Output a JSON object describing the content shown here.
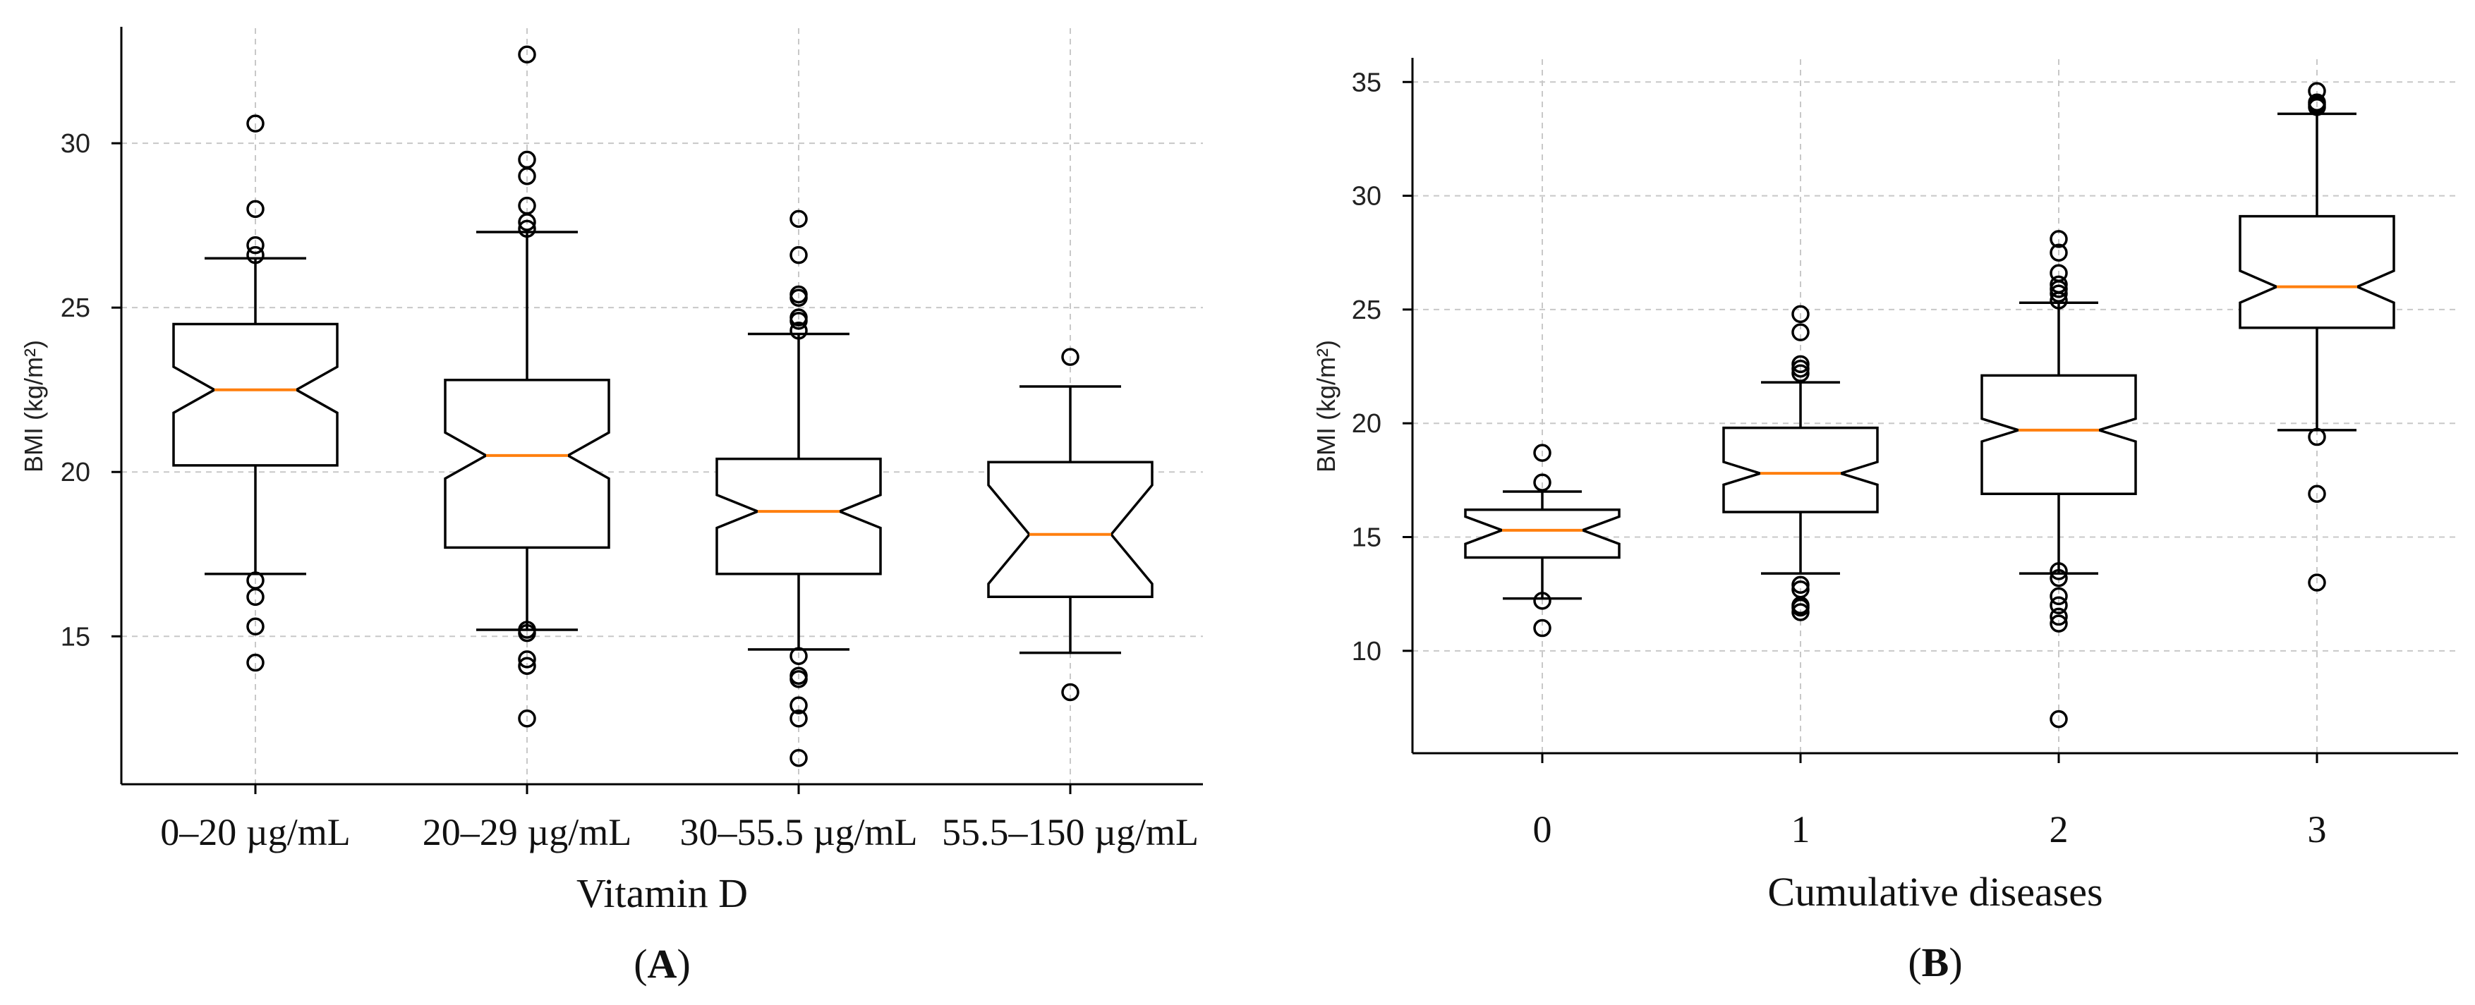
{
  "chart_data": [
    {
      "type": "boxplot",
      "panel_label": "A",
      "xlabel": "Vitamin D",
      "ylabel": "BMI (kg/m²)",
      "ylim": [
        10.5,
        33.5
      ],
      "yticks": [
        15,
        20,
        25,
        30
      ],
      "grid": true,
      "notched": true,
      "categories": [
        "0–20 µg/mL",
        "20–29 µg/mL",
        "30–55.5 µg/mL",
        "55.5–150 µg/mL"
      ],
      "boxes": [
        {
          "whislo": 16.9,
          "q1": 20.2,
          "med": 22.5,
          "q3": 24.5,
          "whishi": 26.5,
          "notch_lo": 21.8,
          "notch_hi": 23.2,
          "fliers": [
            14.2,
            15.3,
            16.2,
            16.7,
            26.6,
            26.9,
            28.0,
            30.6
          ]
        },
        {
          "whislo": 15.2,
          "q1": 17.7,
          "med": 20.5,
          "q3": 22.8,
          "whishi": 27.3,
          "notch_lo": 19.8,
          "notch_hi": 21.2,
          "fliers": [
            12.5,
            14.1,
            14.3,
            15.1,
            15.2,
            27.4,
            27.6,
            28.1,
            29.0,
            29.5,
            32.7
          ]
        },
        {
          "whislo": 14.6,
          "q1": 16.9,
          "med": 18.8,
          "q3": 20.4,
          "whishi": 24.2,
          "notch_lo": 18.3,
          "notch_hi": 19.3,
          "fliers": [
            11.3,
            12.5,
            12.9,
            13.7,
            13.8,
            14.4,
            24.3,
            24.6,
            24.7,
            25.3,
            25.4,
            26.6,
            27.7
          ]
        },
        {
          "whislo": 14.5,
          "q1": 16.2,
          "med": 18.1,
          "q3": 20.3,
          "whishi": 22.6,
          "notch_lo": 16.6,
          "notch_hi": 19.6,
          "fliers": [
            13.3,
            23.5
          ]
        }
      ]
    },
    {
      "type": "boxplot",
      "panel_label": "B",
      "xlabel": "Cumulative diseases",
      "ylabel": "BMI (kg/m²)",
      "ylim": [
        5.5,
        36.0
      ],
      "yticks": [
        10,
        15,
        20,
        25,
        30,
        35
      ],
      "grid": true,
      "notched": true,
      "categories": [
        "0",
        "1",
        "2",
        "3"
      ],
      "boxes": [
        {
          "whislo": 12.3,
          "q1": 14.1,
          "med": 15.3,
          "q3": 16.2,
          "whishi": 17.0,
          "notch_lo": 14.7,
          "notch_hi": 15.9,
          "fliers": [
            11.0,
            12.2,
            17.4,
            18.7
          ]
        },
        {
          "whislo": 13.4,
          "q1": 16.1,
          "med": 17.8,
          "q3": 19.8,
          "whishi": 21.8,
          "notch_lo": 17.3,
          "notch_hi": 18.3,
          "fliers": [
            11.7,
            11.9,
            12.0,
            12.7,
            12.9,
            22.2,
            22.4,
            22.6,
            24.0,
            24.8
          ]
        },
        {
          "whislo": 13.4,
          "q1": 16.9,
          "med": 19.7,
          "q3": 22.1,
          "whishi": 25.3,
          "notch_lo": 19.2,
          "notch_hi": 20.2,
          "fliers": [
            7.0,
            11.2,
            11.5,
            12.0,
            12.4,
            13.2,
            13.5,
            25.4,
            25.7,
            25.9,
            26.1,
            26.6,
            27.5,
            28.1
          ]
        },
        {
          "whislo": 19.7,
          "q1": 24.2,
          "med": 26.0,
          "q3": 29.1,
          "whishi": 33.6,
          "notch_lo": 25.3,
          "notch_hi": 26.7,
          "fliers": [
            13.0,
            16.9,
            19.4,
            33.9,
            34.0,
            34.1,
            34.6
          ]
        }
      ]
    }
  ]
}
